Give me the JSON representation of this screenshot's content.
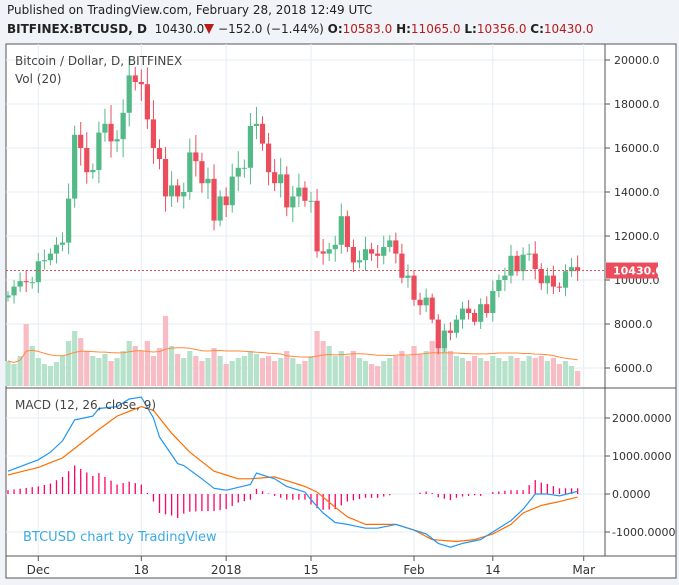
{
  "header": {
    "published": "Published on TradingView.com, February 28, 2018 12:49 UTC",
    "symbol": "BITFINEX:BTCUSD, D",
    "last": "10430.0",
    "change": "−152.0 (−1.44%)",
    "o_label": "O:",
    "o": "10583.0",
    "h_label": "H:",
    "h": "11065.0",
    "l_label": "L:",
    "l": "10356.0",
    "c_label": "C:",
    "c": "10430.0"
  },
  "chart_data": [
    {
      "type": "candlestick",
      "title": "Bitcoin / Dollar, D, BITFINEX",
      "volume_label": "Vol (20)",
      "start_date": "2017-11-26",
      "end_date": "2018-02-28",
      "close": [
        9300,
        9700,
        9950,
        9900,
        9900,
        10850,
        10900,
        11200,
        11600,
        11700,
        13700,
        16600,
        16000,
        14900,
        15000,
        16700,
        17100,
        16300,
        16400,
        17600,
        19300,
        19000,
        18900,
        17300,
        16000,
        15500,
        13800,
        14300,
        13800,
        14000,
        15800,
        15400,
        14400,
        14600,
        12700,
        13800,
        13400,
        14700,
        15100,
        15100,
        17000,
        17100,
        16200,
        14900,
        14400,
        14800,
        13300,
        13800,
        14200,
        13600,
        13600,
        11300,
        11200,
        11400,
        11600,
        12900,
        11500,
        10800,
        10900,
        11400,
        11200,
        11100,
        11500,
        11800,
        11200,
        10100,
        10200,
        9100,
        8850,
        9200,
        8200,
        6900,
        7700,
        7600,
        8200,
        8700,
        8500,
        8100,
        8900,
        8500,
        9500,
        10000,
        10200,
        11100,
        10400,
        11150,
        11200,
        10500,
        9850,
        10200,
        9700,
        9650,
        10400,
        10583,
        10430
      ],
      "volume": [
        25,
        22,
        30,
        62,
        40,
        28,
        22,
        20,
        24,
        30,
        45,
        55,
        48,
        35,
        30,
        28,
        32,
        25,
        28,
        35,
        45,
        40,
        35,
        45,
        30,
        38,
        70,
        40,
        32,
        28,
        35,
        30,
        25,
        28,
        38,
        30,
        22,
        25,
        28,
        30,
        35,
        32,
        28,
        30,
        25,
        28,
        35,
        28,
        22,
        25,
        30,
        55,
        45,
        40,
        30,
        35,
        30,
        35,
        28,
        25,
        22,
        20,
        25,
        28,
        30,
        35,
        30,
        40,
        32,
        35,
        45,
        52,
        48,
        35,
        30,
        28,
        25,
        30,
        28,
        25,
        30,
        28,
        25,
        30,
        28,
        25,
        30,
        28,
        30,
        25,
        28,
        22,
        25,
        20,
        15
      ],
      "yticks": [
        "20000.0",
        "18000.0",
        "16000.0",
        "14000.0",
        "12000.0",
        "10000.0",
        "8000.0",
        "6000.0"
      ],
      "ylim": [
        6000,
        20000
      ],
      "last_price_label": "10430.0",
      "colors": {
        "up": "#53b987",
        "down": "#eb4d5c",
        "vol_up": "#b6e2cc",
        "vol_down": "#f7bcc4",
        "vol_ma": "#ff8a3d"
      }
    },
    {
      "type": "line",
      "title": "MACD (12, 26, close, 9)",
      "macd": [
        [
          "2017-11-26",
          600
        ],
        [
          "2017-12-01",
          900
        ],
        [
          "2017-12-03",
          1100
        ],
        [
          "2017-12-05",
          1400
        ],
        [
          "2017-12-07",
          1950
        ],
        [
          "2017-12-10",
          2050
        ],
        [
          "2017-12-11",
          2250
        ],
        [
          "2017-12-14",
          2300
        ],
        [
          "2017-12-16",
          2500
        ],
        [
          "2017-12-18",
          2550
        ],
        [
          "2017-12-20",
          2000
        ],
        [
          "2017-12-21",
          1500
        ],
        [
          "2017-12-24",
          800
        ],
        [
          "2017-12-25",
          750
        ],
        [
          "2017-12-28",
          400
        ],
        [
          "2017-12-30",
          150
        ],
        [
          "2018-01-01",
          100
        ],
        [
          "2018-01-05",
          250
        ],
        [
          "2018-01-06",
          550
        ],
        [
          "2018-01-09",
          400
        ],
        [
          "2018-01-11",
          200
        ],
        [
          "2018-01-14",
          50
        ],
        [
          "2018-01-15",
          -150
        ],
        [
          "2018-01-17",
          -500
        ],
        [
          "2018-01-19",
          -750
        ],
        [
          "2018-01-21",
          -800
        ],
        [
          "2018-01-24",
          -900
        ],
        [
          "2018-01-26",
          -900
        ],
        [
          "2018-01-29",
          -800
        ],
        [
          "2018-01-31",
          -900
        ],
        [
          "2018-02-03",
          -1050
        ],
        [
          "2018-02-05",
          -1300
        ],
        [
          "2018-02-07",
          -1400
        ],
        [
          "2018-02-09",
          -1300
        ],
        [
          "2018-02-12",
          -1200
        ],
        [
          "2018-02-14",
          -1000
        ],
        [
          "2018-02-17",
          -700
        ],
        [
          "2018-02-19",
          -400
        ],
        [
          "2018-02-21",
          0
        ],
        [
          "2018-02-23",
          0
        ],
        [
          "2018-02-25",
          -50
        ],
        [
          "2018-02-28",
          70
        ]
      ],
      "signal": [
        [
          "2017-11-26",
          500
        ],
        [
          "2017-12-01",
          700
        ],
        [
          "2017-12-05",
          950
        ],
        [
          "2017-12-07",
          1200
        ],
        [
          "2017-12-11",
          1700
        ],
        [
          "2017-12-14",
          2050
        ],
        [
          "2017-12-18",
          2300
        ],
        [
          "2017-12-20",
          2200
        ],
        [
          "2017-12-23",
          1600
        ],
        [
          "2017-12-26",
          1100
        ],
        [
          "2017-12-30",
          600
        ],
        [
          "2018-01-03",
          400
        ],
        [
          "2018-01-05",
          400
        ],
        [
          "2018-01-09",
          450
        ],
        [
          "2018-01-11",
          350
        ],
        [
          "2018-01-14",
          200
        ],
        [
          "2018-01-16",
          50
        ],
        [
          "2018-01-19",
          -350
        ],
        [
          "2018-01-21",
          -600
        ],
        [
          "2018-01-24",
          -800
        ],
        [
          "2018-01-29",
          -800
        ],
        [
          "2018-02-01",
          -950
        ],
        [
          "2018-02-04",
          -1200
        ],
        [
          "2018-02-08",
          -1250
        ],
        [
          "2018-02-11",
          -1200
        ],
        [
          "2018-02-14",
          -1050
        ],
        [
          "2018-02-17",
          -800
        ],
        [
          "2018-02-19",
          -500
        ],
        [
          "2018-02-22",
          -300
        ],
        [
          "2018-02-25",
          -200
        ],
        [
          "2018-02-28",
          -80
        ]
      ],
      "yticks": [
        "2000.0000",
        "1000.0000",
        "0.0000",
        "-1000.0000"
      ],
      "colors": {
        "macd": "#2196f3",
        "signal": "#ff6d00",
        "hist": "#ff0066"
      }
    }
  ],
  "xticks": [
    [
      "2017-12-01",
      "Dec"
    ],
    [
      "2017-12-18",
      "18"
    ],
    [
      "2018-01-01",
      "2018"
    ],
    [
      "2018-01-15",
      "15"
    ],
    [
      "2018-02-01",
      "Feb"
    ],
    [
      "2018-02-14",
      "14"
    ],
    [
      "2018-03-01",
      "Mar"
    ]
  ],
  "watermark": "BTCUSD chart by TradingView"
}
